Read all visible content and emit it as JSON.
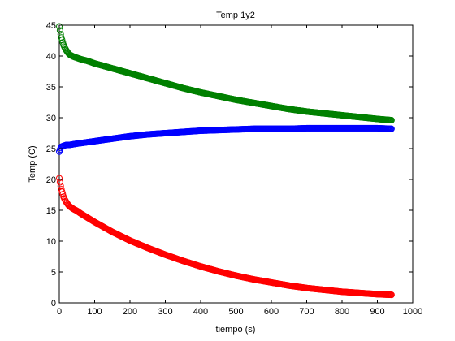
{
  "chart_data": {
    "type": "scatter",
    "title": "Temp 1y2",
    "xlabel": "tiempo (s)",
    "ylabel": "Temp (C)",
    "xlim": [
      0,
      1000
    ],
    "ylim": [
      0,
      45
    ],
    "xticks": [
      0,
      100,
      200,
      300,
      400,
      500,
      600,
      700,
      800,
      900,
      1000
    ],
    "yticks": [
      0,
      5,
      10,
      15,
      20,
      25,
      30,
      35,
      40,
      45
    ],
    "grid": false,
    "marker": "open-circle",
    "series": [
      {
        "color": "#008000",
        "x": [
          0,
          3,
          6,
          9,
          12,
          15,
          20,
          25,
          30,
          40,
          50,
          60,
          80,
          100,
          125,
          150,
          175,
          200,
          250,
          300,
          350,
          400,
          450,
          500,
          550,
          600,
          650,
          700,
          750,
          800,
          850,
          900,
          940
        ],
        "y": [
          44.8,
          43.8,
          43.0,
          42.4,
          41.8,
          41.4,
          40.9,
          40.5,
          40.2,
          39.9,
          39.7,
          39.5,
          39.2,
          38.8,
          38.4,
          38.0,
          37.6,
          37.2,
          36.4,
          35.6,
          34.8,
          34.1,
          33.5,
          32.9,
          32.4,
          31.9,
          31.4,
          31.0,
          30.7,
          30.4,
          30.1,
          29.8,
          29.6
        ]
      },
      {
        "color": "#0000ff",
        "x": [
          0,
          3,
          6,
          10,
          15,
          20,
          30,
          50,
          75,
          100,
          150,
          200,
          250,
          300,
          350,
          400,
          450,
          500,
          550,
          600,
          650,
          700,
          750,
          800,
          850,
          900,
          940
        ],
        "y": [
          24.5,
          25.0,
          25.3,
          25.4,
          25.5,
          25.6,
          25.6,
          25.8,
          26.0,
          26.2,
          26.6,
          27.0,
          27.3,
          27.5,
          27.7,
          27.9,
          28.0,
          28.1,
          28.2,
          28.2,
          28.2,
          28.3,
          28.3,
          28.3,
          28.3,
          28.3,
          28.2
        ]
      },
      {
        "color": "#ff0000",
        "x": [
          0,
          3,
          6,
          9,
          12,
          15,
          20,
          25,
          30,
          40,
          50,
          60,
          80,
          100,
          125,
          150,
          175,
          200,
          250,
          300,
          350,
          400,
          450,
          500,
          550,
          600,
          650,
          700,
          750,
          800,
          850,
          900,
          940
        ],
        "y": [
          20.2,
          19.2,
          18.4,
          17.8,
          17.2,
          16.8,
          16.3,
          15.9,
          15.6,
          15.2,
          14.9,
          14.5,
          13.8,
          13.1,
          12.3,
          11.5,
          10.8,
          10.1,
          8.9,
          7.8,
          6.8,
          5.9,
          5.1,
          4.4,
          3.8,
          3.3,
          2.8,
          2.4,
          2.1,
          1.8,
          1.6,
          1.4,
          1.3
        ]
      }
    ]
  }
}
